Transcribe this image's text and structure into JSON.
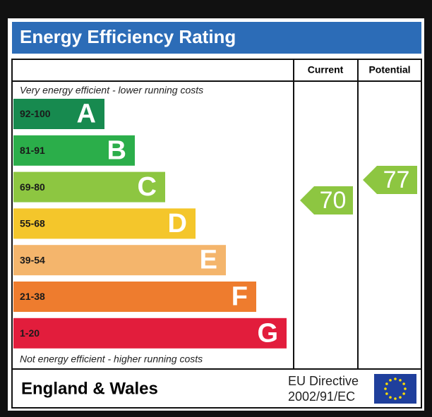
{
  "title": "Energy Efficiency Rating",
  "columns": {
    "current": "Current",
    "potential": "Potential"
  },
  "top_note": "Very energy efficient - lower running costs",
  "bands": [
    {
      "range": "92-100",
      "letter": "A",
      "color": "#178a4f"
    },
    {
      "range": "81-91",
      "letter": "B",
      "color": "#2bae4a"
    },
    {
      "range": "69-80",
      "letter": "C",
      "color": "#8dc641"
    },
    {
      "range": "55-68",
      "letter": "D",
      "color": "#f4c62b"
    },
    {
      "range": "39-54",
      "letter": "E",
      "color": "#f4b56c"
    },
    {
      "range": "21-38",
      "letter": "F",
      "color": "#ee7c2e"
    },
    {
      "range": "1-20",
      "letter": "G",
      "color": "#e21d3c"
    }
  ],
  "current": 70,
  "potential": 77,
  "arrow_color": "#8dc641",
  "bottom_note": "Not energy efficient - higher running costs",
  "footer": {
    "region": "England & Wales",
    "directive": [
      "EU Directive",
      "2002/91/EC"
    ]
  }
}
